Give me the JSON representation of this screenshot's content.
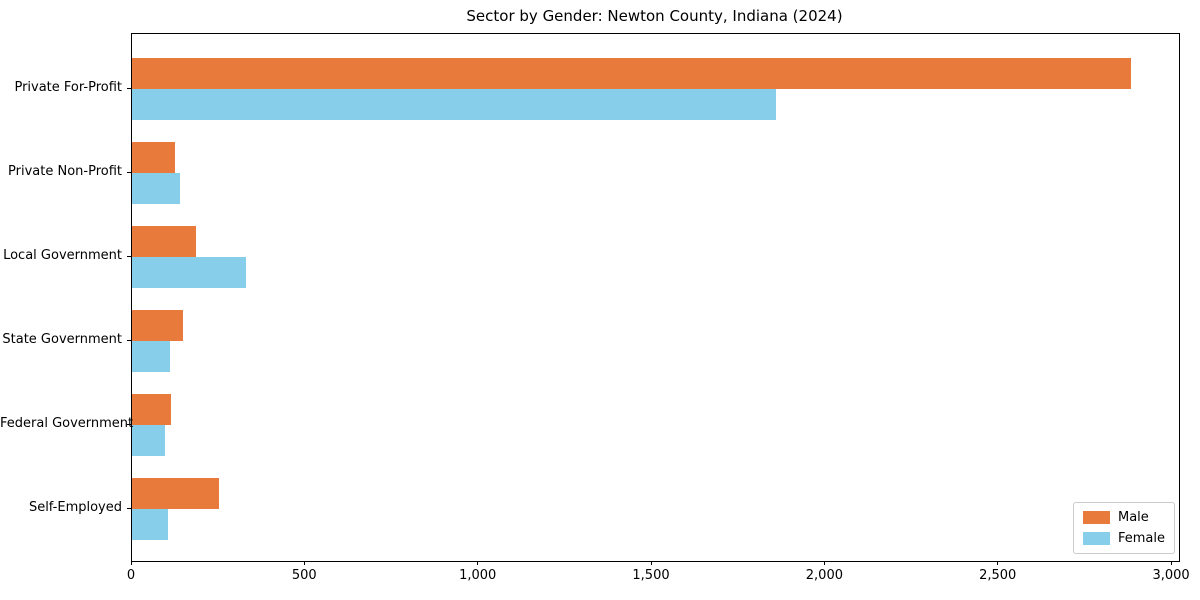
{
  "chart_data": {
    "type": "bar",
    "orientation": "horizontal",
    "title": "Sector by Gender: Newton County, Indiana (2024)",
    "categories": [
      "Private For-Profit",
      "Private Non-Profit",
      "Local Government",
      "State Government",
      "Federal Government",
      "Self-Employed"
    ],
    "series": [
      {
        "name": "Male",
        "color": "#e87a3c",
        "values": [
          2880,
          123,
          184,
          146,
          112,
          250
        ]
      },
      {
        "name": "Female",
        "color": "#87ceeb",
        "values": [
          1856,
          138,
          330,
          110,
          94,
          105
        ]
      }
    ],
    "xlabel": "",
    "ylabel": "",
    "xlim": [
      0,
      3020
    ],
    "xticks": [
      0,
      500,
      1000,
      1500,
      2000,
      2500,
      3000
    ],
    "xtick_labels": [
      "0",
      "500",
      "1,000",
      "1,500",
      "2,000",
      "2,500",
      "3,000"
    ],
    "grid": false,
    "legend": {
      "position": "lower right"
    }
  }
}
